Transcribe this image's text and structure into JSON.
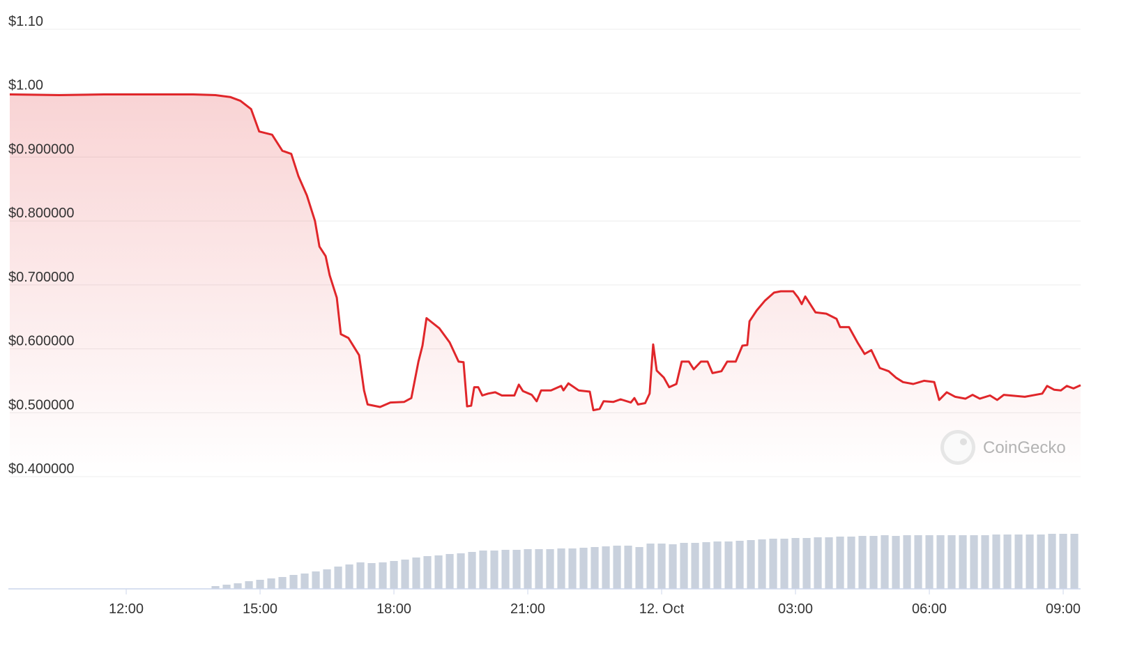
{
  "chart_data": {
    "type": "line",
    "color": "#e0262a",
    "fill": true,
    "grid": true,
    "watermark": "CoinGecko",
    "xlim": [
      9.39,
      33.39
    ],
    "xticks": [
      {
        "value": 12,
        "label": "12:00"
      },
      {
        "value": 15,
        "label": "15:00"
      },
      {
        "value": 18,
        "label": "18:00"
      },
      {
        "value": 21,
        "label": "21:00"
      },
      {
        "value": 24,
        "label": "12. Oct"
      },
      {
        "value": 27,
        "label": "03:00"
      },
      {
        "value": 30,
        "label": "06:00"
      },
      {
        "value": 33,
        "label": "09:00"
      }
    ],
    "ylim": [
      0.4,
      1.1
    ],
    "yticks": [
      {
        "value": 1.1,
        "label": "$1.10"
      },
      {
        "value": 1.0,
        "label": "$1.00"
      },
      {
        "value": 0.9,
        "label": "$0.900000"
      },
      {
        "value": 0.8,
        "label": "$0.800000"
      },
      {
        "value": 0.7,
        "label": "$0.700000"
      },
      {
        "value": 0.6,
        "label": "$0.600000"
      },
      {
        "value": 0.5,
        "label": "$0.500000"
      },
      {
        "value": 0.4,
        "label": "$0.400000"
      }
    ],
    "x": [
      9.39,
      10.5,
      11.5,
      12.5,
      13.5,
      14.0,
      14.33,
      14.56,
      14.8,
      14.98,
      15.27,
      15.5,
      15.7,
      15.86,
      16.05,
      16.23,
      16.33,
      16.47,
      16.56,
      16.72,
      16.81,
      16.98,
      17.22,
      17.33,
      17.41,
      17.69,
      17.92,
      18.23,
      18.39,
      18.55,
      18.64,
      18.73,
      19.02,
      19.25,
      19.45,
      19.56,
      19.64,
      19.73,
      19.8,
      19.89,
      19.98,
      20.11,
      20.27,
      20.42,
      20.7,
      20.8,
      20.89,
      21.09,
      21.2,
      21.3,
      21.52,
      21.75,
      21.8,
      21.91,
      22.14,
      22.39,
      22.47,
      22.61,
      22.7,
      22.92,
      23.08,
      23.31,
      23.39,
      23.47,
      23.63,
      23.73,
      23.81,
      23.89,
      24.05,
      24.17,
      24.33,
      24.45,
      24.61,
      24.72,
      24.88,
      25.03,
      25.14,
      25.34,
      25.47,
      25.66,
      25.81,
      25.92,
      25.97,
      26.13,
      26.31,
      26.52,
      26.67,
      26.95,
      27.06,
      27.14,
      27.22,
      27.45,
      27.69,
      27.92,
      28.0,
      28.2,
      28.39,
      28.55,
      28.7,
      28.89,
      29.09,
      29.25,
      29.41,
      29.64,
      29.88,
      30.11,
      30.22,
      30.39,
      30.58,
      30.81,
      30.97,
      31.13,
      31.36,
      31.52,
      31.67,
      32.14,
      32.53,
      32.64,
      32.8,
      32.95,
      33.08,
      33.23,
      33.39
    ],
    "values": [
      0.998,
      0.997,
      0.998,
      0.998,
      0.998,
      0.997,
      0.994,
      0.988,
      0.975,
      0.94,
      0.935,
      0.91,
      0.905,
      0.87,
      0.84,
      0.8,
      0.76,
      0.745,
      0.715,
      0.68,
      0.623,
      0.617,
      0.59,
      0.535,
      0.513,
      0.509,
      0.516,
      0.517,
      0.523,
      0.58,
      0.605,
      0.648,
      0.632,
      0.61,
      0.58,
      0.579,
      0.51,
      0.511,
      0.54,
      0.54,
      0.527,
      0.53,
      0.532,
      0.527,
      0.527,
      0.544,
      0.534,
      0.528,
      0.518,
      0.535,
      0.535,
      0.542,
      0.535,
      0.546,
      0.535,
      0.533,
      0.504,
      0.506,
      0.518,
      0.517,
      0.521,
      0.516,
      0.523,
      0.513,
      0.515,
      0.53,
      0.607,
      0.566,
      0.555,
      0.54,
      0.545,
      0.58,
      0.58,
      0.568,
      0.58,
      0.58,
      0.562,
      0.565,
      0.58,
      0.58,
      0.605,
      0.606,
      0.643,
      0.66,
      0.675,
      0.688,
      0.69,
      0.69,
      0.68,
      0.67,
      0.682,
      0.657,
      0.655,
      0.647,
      0.634,
      0.634,
      0.61,
      0.592,
      0.598,
      0.57,
      0.565,
      0.555,
      0.548,
      0.545,
      0.55,
      0.548,
      0.52,
      0.532,
      0.525,
      0.522,
      0.528,
      0.522,
      0.527,
      0.52,
      0.528,
      0.525,
      0.53,
      0.542,
      0.536,
      0.535,
      0.542,
      0.538,
      0.543
    ],
    "volume": {
      "type": "bar",
      "color": "#c9d1dd",
      "y2lim": [
        0,
        100
      ],
      "x": [
        14.0,
        14.25,
        14.5,
        14.75,
        15.0,
        15.25,
        15.5,
        15.75,
        16.0,
        16.25,
        16.5,
        16.75,
        17.0,
        17.25,
        17.5,
        17.75,
        18.0,
        18.25,
        18.5,
        18.75,
        19.0,
        19.25,
        19.5,
        19.75,
        20.0,
        20.25,
        20.5,
        20.75,
        21.0,
        21.25,
        21.5,
        21.75,
        22.0,
        22.25,
        22.5,
        22.75,
        23.0,
        23.25,
        23.5,
        23.75,
        24.0,
        24.25,
        24.5,
        24.75,
        25.0,
        25.25,
        25.5,
        25.75,
        26.0,
        26.25,
        26.5,
        26.75,
        27.0,
        27.25,
        27.5,
        27.75,
        28.0,
        28.25,
        28.5,
        28.75,
        29.0,
        29.25,
        29.5,
        29.75,
        30.0,
        30.25,
        30.5,
        30.75,
        31.0,
        31.25,
        31.5,
        31.75,
        32.0,
        32.25,
        32.5,
        32.75,
        33.0,
        33.25
      ],
      "values": [
        4,
        6,
        8,
        11,
        13,
        15,
        17,
        20,
        22,
        25,
        28,
        32,
        35,
        38,
        37,
        38,
        40,
        42,
        45,
        47,
        48,
        50,
        51,
        53,
        55,
        55,
        56,
        56,
        57,
        57,
        57,
        58,
        58,
        59,
        60,
        61,
        62,
        62,
        60,
        65,
        65,
        64,
        66,
        66,
        67,
        68,
        68,
        69,
        70,
        71,
        72,
        72,
        73,
        73,
        74,
        74,
        75,
        75,
        76,
        76,
        77,
        76,
        77,
        77,
        77,
        77,
        77,
        77,
        77,
        77,
        78,
        78,
        78,
        78,
        78,
        79,
        79,
        79
      ]
    }
  }
}
